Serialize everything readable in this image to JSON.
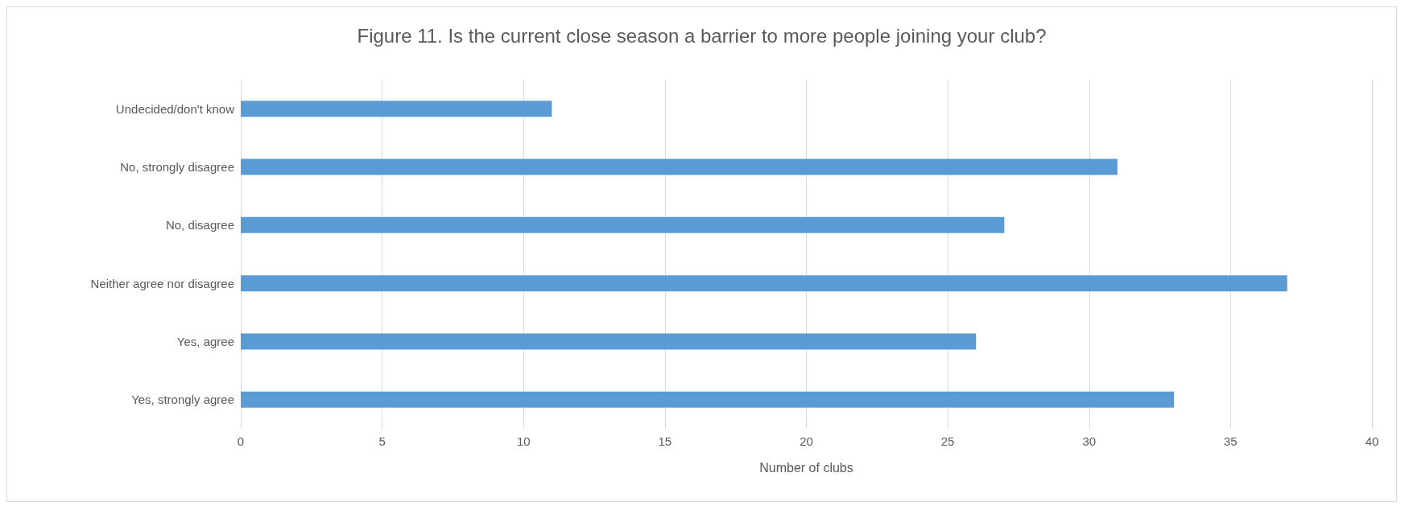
{
  "chart_data": {
    "type": "bar",
    "orientation": "horizontal",
    "title": "Figure 11. Is the current close season a barrier to more people joining your club?",
    "xlabel": "Number of clubs",
    "categories": [
      "Undecided/don't know",
      "No, strongly disagree",
      "No, disagree",
      "Neither agree nor disagree",
      "Yes, agree",
      "Yes, strongly agree"
    ],
    "values": [
      11,
      31,
      27,
      37,
      26,
      33
    ],
    "color": "#5b9bd5",
    "xlim": [
      0,
      40
    ],
    "xticks": [
      0,
      5,
      10,
      15,
      20,
      25,
      30,
      35,
      40
    ],
    "grid": "x"
  }
}
